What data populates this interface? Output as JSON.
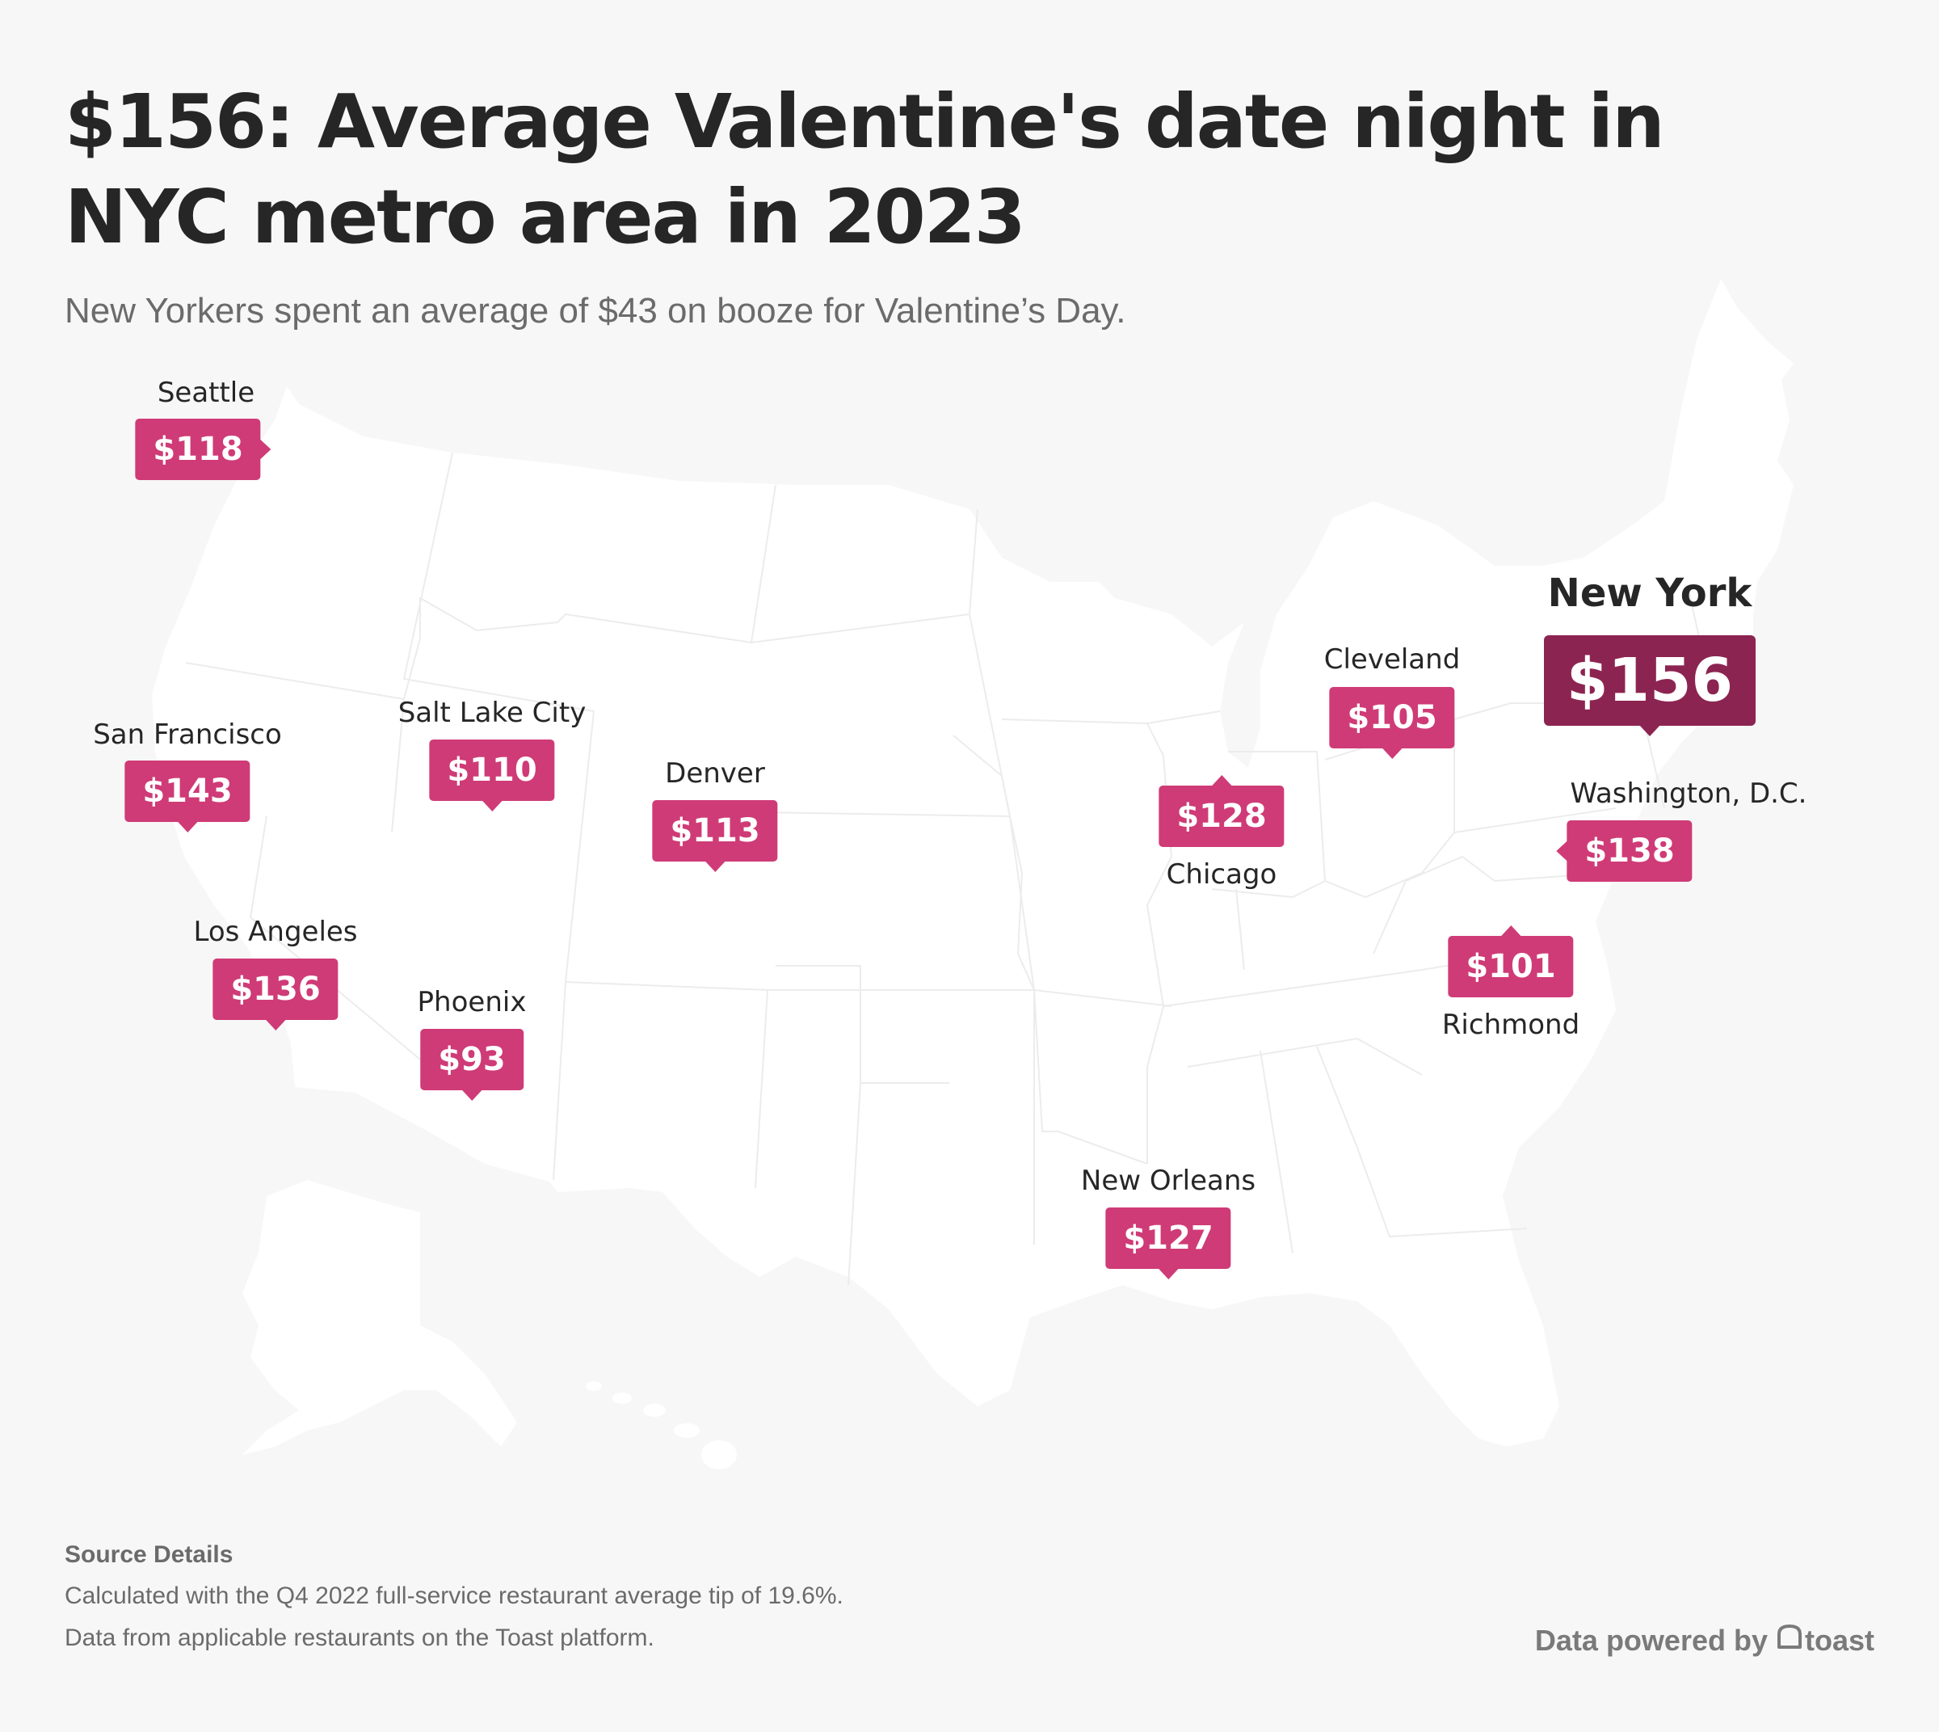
{
  "header": {
    "title": "$156: Average Valentine's date night in NYC metro area in 2023",
    "subtitle": "New Yorkers spent an average of $43 on booze for Valentine’s Day."
  },
  "map": {
    "region": "United States",
    "marker_color": "#cf3b76",
    "highlight_color": "#8c2451",
    "land_color": "#ffffff",
    "background_color": "#f7f7f7",
    "cities": [
      {
        "id": "seattle",
        "name": "Seattle",
        "value": "$118",
        "amount": 118
      },
      {
        "id": "san-francisco",
        "name": "San Francisco",
        "value": "$143",
        "amount": 143
      },
      {
        "id": "salt-lake-city",
        "name": "Salt Lake City",
        "value": "$110",
        "amount": 110
      },
      {
        "id": "denver",
        "name": "Denver",
        "value": "$113",
        "amount": 113
      },
      {
        "id": "los-angeles",
        "name": "Los Angeles",
        "value": "$136",
        "amount": 136
      },
      {
        "id": "phoenix",
        "name": "Phoenix",
        "value": "$93",
        "amount": 93
      },
      {
        "id": "chicago",
        "name": "Chicago",
        "value": "$128",
        "amount": 128
      },
      {
        "id": "cleveland",
        "name": "Cleveland",
        "value": "$105",
        "amount": 105
      },
      {
        "id": "new-york",
        "name": "New York",
        "value": "$156",
        "amount": 156,
        "highlighted": true
      },
      {
        "id": "washington-dc",
        "name": "Washington, D.C.",
        "value": "$138",
        "amount": 138
      },
      {
        "id": "richmond",
        "name": "Richmond",
        "value": "$101",
        "amount": 101
      },
      {
        "id": "new-orleans",
        "name": "New Orleans",
        "value": "$127",
        "amount": 127
      }
    ]
  },
  "footer": {
    "source_heading": "Source Details",
    "source_lines": [
      "Calculated with the Q4 2022 full-service restaurant average tip of 19.6%.",
      "Data from applicable restaurants on the Toast platform."
    ],
    "credit_prefix": "Data powered by",
    "credit_brand": "toast",
    "credit_icon": "toast-logo-icon"
  }
}
